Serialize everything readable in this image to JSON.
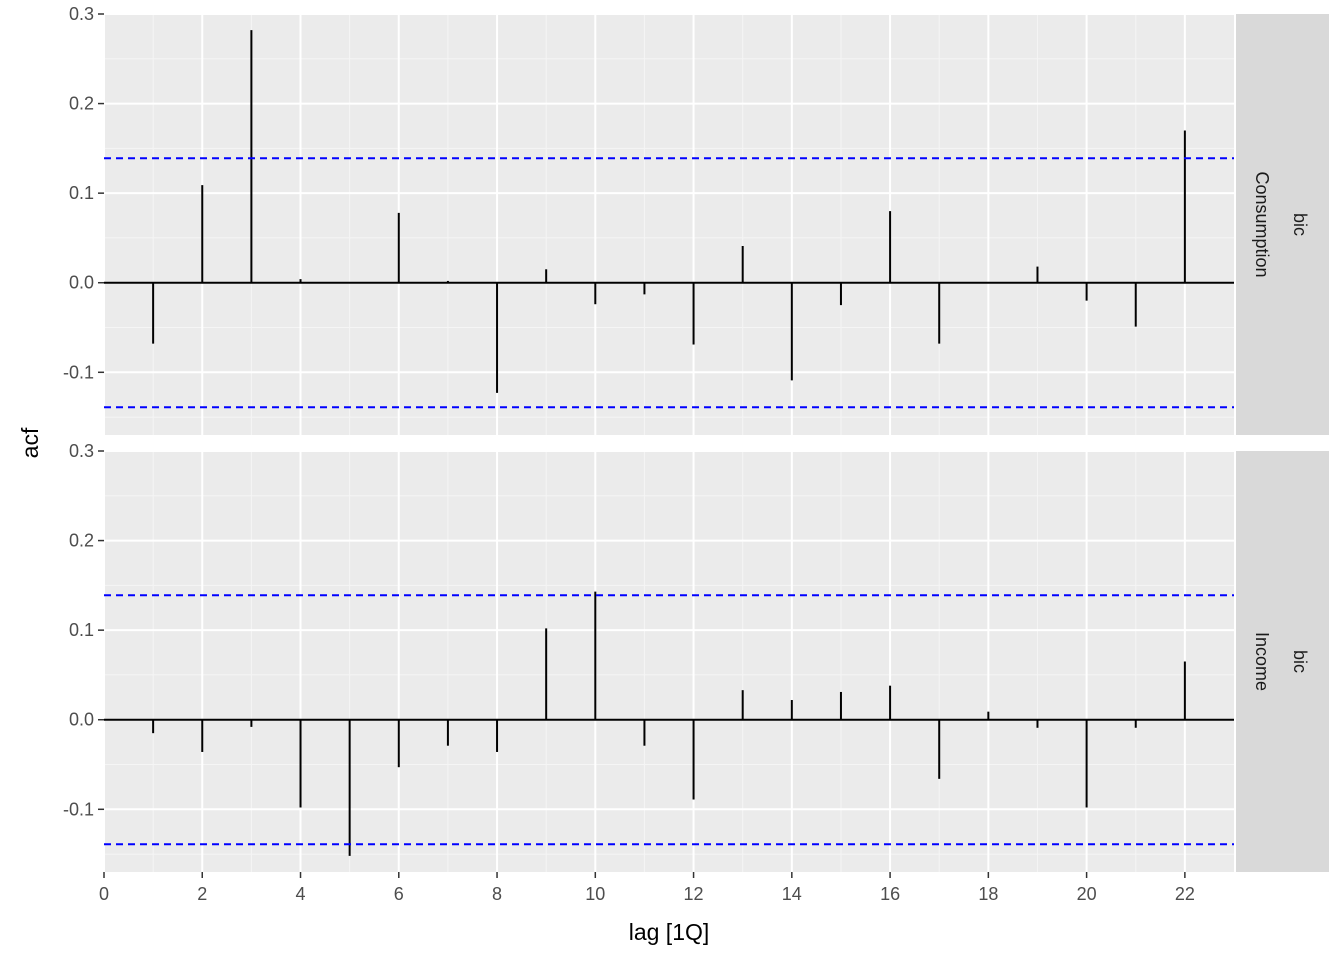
{
  "chart_data": {
    "type": "bar",
    "xlabel": "lag [1Q]",
    "ylabel": "acf",
    "xlim": [
      0,
      23
    ],
    "ylim": [
      -0.17,
      0.3
    ],
    "x_ticks": [
      0,
      2,
      4,
      6,
      8,
      10,
      12,
      14,
      16,
      18,
      20,
      22
    ],
    "y_ticks": [
      -0.1,
      0.0,
      0.1,
      0.2,
      0.3
    ],
    "y_tick_labels": [
      "-0.1",
      "0.0",
      "0.1",
      "0.2",
      "0.3"
    ],
    "grid": true,
    "confidence_bound": 0.139,
    "confidence_color": "#0000ff",
    "bar_color": "#000000",
    "panels": [
      {
        "facet_model": "bic",
        "facet_series": "Consumption",
        "lags": [
          1,
          2,
          3,
          4,
          5,
          6,
          7,
          8,
          9,
          10,
          11,
          12,
          13,
          14,
          15,
          16,
          17,
          18,
          19,
          20,
          21,
          22
        ],
        "values": [
          -0.068,
          0.109,
          0.282,
          0.004,
          0.0,
          0.078,
          0.002,
          -0.123,
          0.015,
          -0.024,
          -0.013,
          -0.069,
          0.041,
          -0.109,
          -0.025,
          0.08,
          -0.068,
          0.0,
          0.018,
          -0.02,
          -0.049,
          0.17
        ]
      },
      {
        "facet_model": "bic",
        "facet_series": "Income",
        "lags": [
          1,
          2,
          3,
          4,
          5,
          6,
          7,
          8,
          9,
          10,
          11,
          12,
          13,
          14,
          15,
          16,
          17,
          18,
          19,
          20,
          21,
          22
        ],
        "values": [
          -0.015,
          -0.036,
          -0.008,
          -0.098,
          -0.152,
          -0.053,
          -0.029,
          -0.036,
          0.102,
          0.143,
          -0.029,
          -0.089,
          0.033,
          0.022,
          0.031,
          0.038,
          -0.066,
          0.009,
          -0.009,
          -0.098,
          -0.009,
          0.065
        ]
      }
    ]
  }
}
